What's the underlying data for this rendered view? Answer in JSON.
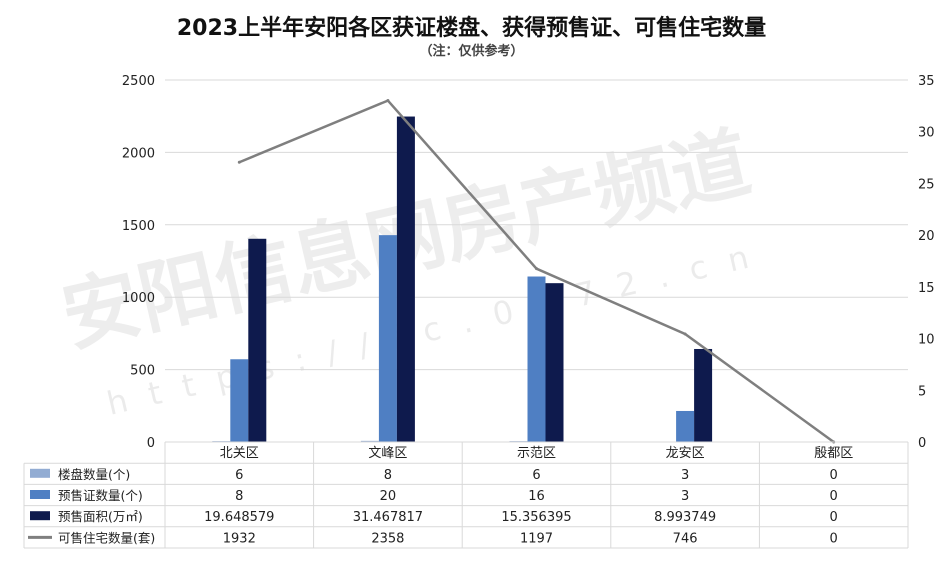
{
  "title": "2023上半年安阳各区获证楼盘、获得预售证、可售住宅数量",
  "subtitle": "（注：仅供参考）",
  "watermark": {
    "text": "安阳信息网房产频道",
    "url": "https://fc.0372.cn"
  },
  "colors": {
    "series1": "#92acd3",
    "series2": "#4f7fc3",
    "series3": "#0e1a4d",
    "series4": "#7f7f7f",
    "grid": "#d9d9d9",
    "axis_text": "#222222"
  },
  "chart_data": {
    "type": "bar",
    "categories": [
      "北关区",
      "文峰区",
      "示范区",
      "龙安区",
      "殷都区"
    ],
    "series": [
      {
        "name": "楼盘数量(个)",
        "type": "bar",
        "axis": "left",
        "values": [
          6,
          8,
          6,
          3,
          0
        ],
        "labels": [
          "6",
          "8",
          "6",
          "3",
          "0"
        ]
      },
      {
        "name": "预售证数量(个)",
        "type": "bar",
        "axis": "right",
        "values": [
          8,
          20,
          16,
          3,
          0
        ],
        "labels": [
          "8",
          "20",
          "16",
          "3",
          "0"
        ]
      },
      {
        "name": "预售面积(万㎡)",
        "type": "bar",
        "axis": "right",
        "values": [
          19.648579,
          31.467817,
          15.356395,
          8.993749,
          0
        ],
        "labels": [
          "19.648579",
          "31.467817",
          "15.356395",
          "8.993749",
          "0"
        ]
      },
      {
        "name": "可售住宅数量(套)",
        "type": "line",
        "axis": "left",
        "values": [
          1932,
          2358,
          1197,
          746,
          0
        ],
        "labels": [
          "1932",
          "2358",
          "1197",
          "746",
          "0"
        ]
      }
    ],
    "y_left": {
      "range": [
        0,
        2500
      ],
      "ticks": [
        "0",
        "500",
        "1000",
        "1500",
        "2000",
        "2500"
      ]
    },
    "y_right": {
      "range": [
        0,
        35
      ],
      "ticks": [
        "0",
        "5",
        "10",
        "15",
        "20",
        "25",
        "30",
        "35"
      ]
    },
    "grid": true,
    "legend": "data-table"
  }
}
